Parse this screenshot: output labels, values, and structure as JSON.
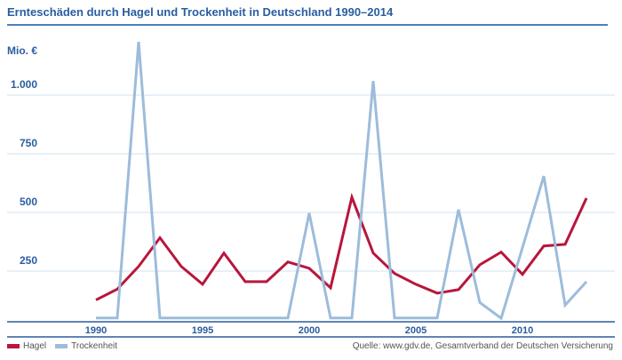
{
  "chart_data": {
    "type": "line",
    "title": "Ernteschäden durch Hagel und Trockenheit in Deutschland 1990–2014",
    "ylabel": "Mio. €",
    "xlabel": "",
    "ylim": [
      0,
      1250
    ],
    "y_ticks": [
      250,
      500,
      750,
      1000
    ],
    "y_tick_labels": [
      "250",
      "500",
      "750",
      "1.000"
    ],
    "x_ticks": [
      1990,
      1995,
      2000,
      2005,
      2010
    ],
    "x_tick_labels": [
      "1990",
      "1995",
      "2000",
      "2005",
      "2010"
    ],
    "xlim": [
      1989,
      2014
    ],
    "grid": true,
    "legend_position": "bottom-left",
    "x": [
      1990,
      1991,
      1992,
      1993,
      1994,
      1995,
      1996,
      1997,
      1998,
      1999,
      2000,
      2001,
      2002,
      2003,
      2004,
      2005,
      2006,
      2007,
      2008,
      2009,
      2010,
      2011,
      2012,
      2013
    ],
    "series": [
      {
        "name": "Hagel",
        "color": "#b8163c",
        "values": [
          127,
          173,
          270,
          392,
          270,
          194,
          327,
          205,
          205,
          289,
          262,
          179,
          565,
          327,
          240,
          194,
          156,
          171,
          277,
          331,
          236,
          357,
          364,
          561
        ]
      },
      {
        "name": "Trockenheit",
        "color": "#9dbcdc",
        "values": [
          50,
          50,
          1227,
          50,
          50,
          50,
          50,
          50,
          50,
          50,
          497,
          50,
          50,
          1060,
          50,
          50,
          50,
          512,
          116,
          45,
          350,
          655,
          105,
          205
        ]
      }
    ]
  },
  "legend": {
    "hagel": "Hagel",
    "trockenheit": "Trockenheit"
  },
  "source": "Quelle: www.gdv.de, Gesamtverband der Deutschen Versicherung"
}
